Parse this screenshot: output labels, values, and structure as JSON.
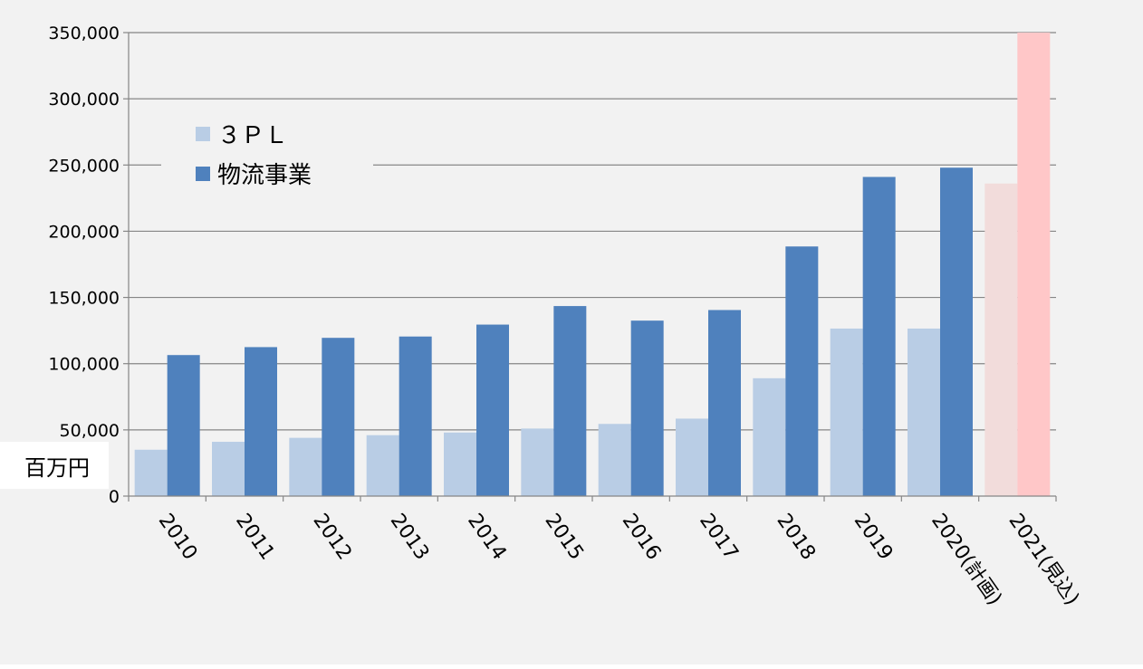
{
  "chart_data": {
    "type": "bar",
    "categories": [
      "2010",
      "2011",
      "2012",
      "2013",
      "2014",
      "2015",
      "2016",
      "2017",
      "2018",
      "2019",
      "2020(計画)",
      "2021(見込)"
    ],
    "series": [
      {
        "name": "３ＰＬ",
        "color": "#B9CDE5",
        "values": [
          35000,
          41000,
          44000,
          46000,
          48000,
          51000,
          54500,
          58500,
          89000,
          126500,
          126500,
          236000
        ]
      },
      {
        "name": "物流事業",
        "color": "#4F81BD",
        "values": [
          106500,
          112500,
          119500,
          120500,
          129500,
          143500,
          132500,
          140500,
          188500,
          241000,
          248000,
          350000
        ]
      }
    ],
    "highlight_categories": [
      "2021(見込)"
    ],
    "highlight_colors": [
      "#F2DCDB",
      "#FFC7C8"
    ],
    "ylim": [
      0,
      350000
    ],
    "yticks": [
      0,
      50000,
      100000,
      150000,
      200000,
      250000,
      300000,
      350000
    ],
    "ytick_labels": [
      "0",
      "50,000",
      "100,000",
      "150,000",
      "200,000",
      "250,000",
      "300,000",
      "350,000"
    ],
    "unit_label": "百万円",
    "legend_position": "top-left",
    "grid": true
  }
}
